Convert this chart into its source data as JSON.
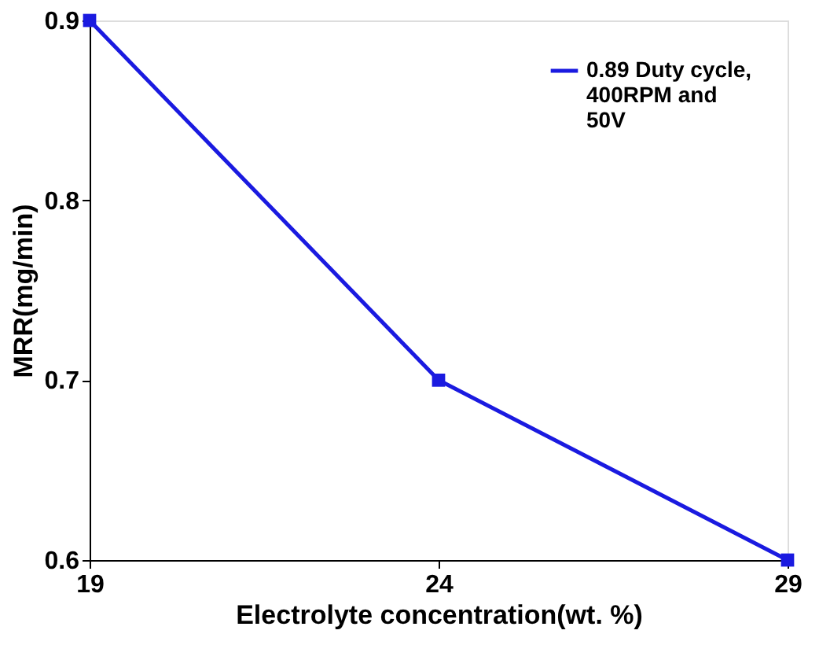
{
  "chart_data": {
    "type": "line",
    "xlabel": "Electrolyte concentration(wt. %)",
    "ylabel": "MRR(mg/min)",
    "x": [
      19,
      24,
      29
    ],
    "series": [
      {
        "name": "0.89 Duty cycle,\n400RPM and\n50V",
        "color": "#1a1ae0",
        "values": [
          0.9,
          0.7,
          0.6
        ]
      }
    ],
    "xlim": [
      19,
      29
    ],
    "xticks": [
      19,
      24,
      29
    ],
    "ylim": [
      0.6,
      0.9
    ],
    "yticks": [
      0.6,
      0.7,
      0.8,
      0.9
    ],
    "marker": "square",
    "line_style": "solid",
    "grid": false,
    "legend": "top right"
  }
}
